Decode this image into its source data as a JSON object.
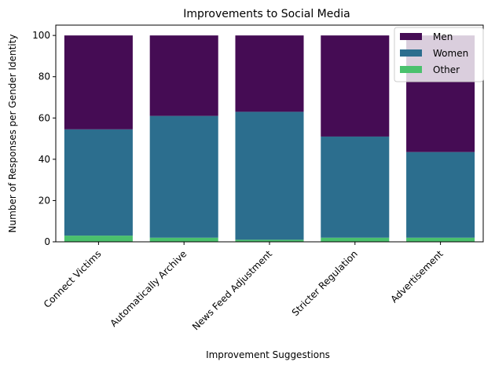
{
  "chart_data": {
    "type": "bar",
    "stacked": true,
    "title": "Improvements to Social Media",
    "xlabel": "Improvement Suggestions",
    "ylabel": "Number of Responses per Gender Identity",
    "ylim": [
      0,
      105
    ],
    "yticks": [
      0,
      20,
      40,
      60,
      80,
      100
    ],
    "categories": [
      "Connect Victims",
      "Automatically Archive",
      "News Feed Adjustment",
      "Stricter Regulation",
      "Advertisement"
    ],
    "series": [
      {
        "name": "Other",
        "color": "#4ac16d",
        "values": [
          3,
          2,
          1,
          2,
          2
        ]
      },
      {
        "name": "Women",
        "color": "#2c6e8e",
        "values": [
          51.5,
          59,
          62,
          49,
          41.5
        ]
      },
      {
        "name": "Men",
        "color": "#450c54",
        "values": [
          45.5,
          39,
          37,
          49,
          56.5
        ]
      }
    ],
    "legend": {
      "position": "top-right",
      "order": [
        "Men",
        "Women",
        "Other"
      ]
    },
    "grid": false
  }
}
